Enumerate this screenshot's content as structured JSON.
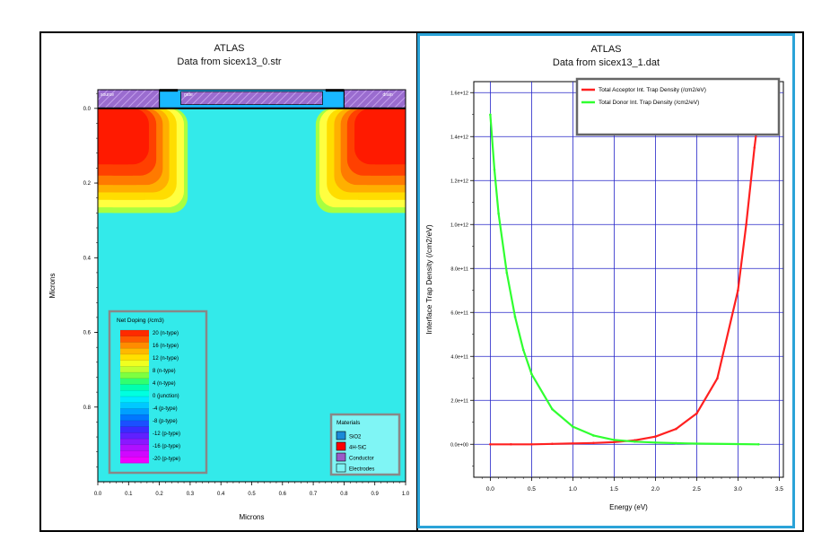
{
  "left": {
    "title": "ATLAS",
    "subtitle": "Data from sicex13_0.str",
    "xlabel": "Microns",
    "ylabel": "Microns",
    "x_ticks": [
      "0.0",
      "0.1",
      "0.2",
      "0.3",
      "0.4",
      "0.5",
      "0.6",
      "0.7",
      "0.8",
      "0.9",
      "1.0"
    ],
    "y_ticks": [
      "0.0",
      "0.2",
      "0.4",
      "0.6",
      "0.8"
    ],
    "xlim": [
      0,
      1.0
    ],
    "ylim": [
      -0.05,
      1.0
    ],
    "electrodes": [
      {
        "label": "source",
        "x0": 0.0,
        "x1": 0.2
      },
      {
        "label": "gate",
        "x0": 0.2,
        "x1": 0.8
      },
      {
        "label": "drain",
        "x0": 0.8,
        "x1": 1.0
      }
    ],
    "doping_legend": {
      "title": "Net Doping (/cm3)",
      "entries": [
        "20 (n-type)",
        "16 (n-type)",
        "12 (n-type)",
        "8 (n-type)",
        "4 (n-type)",
        "0 (junction)",
        "-4 (p-type)",
        "-8 (p-type)",
        "-12 (p-type)",
        "-16 (p-type)",
        "-20 (p-type)"
      ],
      "colors": [
        "#ff2a00",
        "#ff5a00",
        "#ff8c00",
        "#ffb800",
        "#ffe000",
        "#f0ff20",
        "#c0ff30",
        "#7dff40",
        "#30ff70",
        "#00ffb0",
        "#00ffe0",
        "#00eaff",
        "#00c8ff",
        "#00a0ff",
        "#0078ff",
        "#1a50ff",
        "#3a2aff",
        "#6020ff",
        "#8a18ff",
        "#b010ff",
        "#d008ff",
        "#f000ff"
      ]
    },
    "materials_legend": {
      "title": "Materials",
      "entries": [
        {
          "label": "SiO2",
          "color": "#1a8ad8"
        },
        {
          "label": "4H-SiC",
          "color": "#ff0000"
        },
        {
          "label": "Conductor",
          "color": "#9a5bc8"
        },
        {
          "label": "Electrodes",
          "color": "#7ff5f5"
        }
      ]
    },
    "colors": {
      "substrate": "#33eaea",
      "oxide": "#19b8ff",
      "conductor": "#9a6ccf"
    }
  },
  "chart_data": {
    "type": "line",
    "title": "ATLAS",
    "subtitle": "Data from sicex13_1.dat",
    "xlabel": "Energy (eV)",
    "ylabel": "Interface Trap Density (/cm2/eV)",
    "xlim": [
      -0.2,
      3.55
    ],
    "ylim": [
      -150000000000.0,
      1650000000000.0
    ],
    "x_ticks": [
      "0.0",
      "0.5",
      "1.0",
      "1.5",
      "2.0",
      "2.5",
      "3.0",
      "3.5"
    ],
    "y_ticks": [
      "0.0e+00",
      "2.0e+11",
      "4.0e+11",
      "6.0e+11",
      "8.0e+11",
      "1.0e+12",
      "1.2e+12",
      "1.4e+12",
      "1.6e+12"
    ],
    "grid": true,
    "legend_position": "top-right",
    "series": [
      {
        "name": "Total Acceptor Int. Trap Density (/cm2/eV)",
        "color": "#ff2020",
        "x": [
          0.0,
          0.25,
          0.5,
          0.75,
          1.0,
          1.25,
          1.5,
          1.75,
          2.0,
          2.25,
          2.5,
          2.75,
          3.0,
          3.1,
          3.2,
          3.25
        ],
        "y": [
          0.0,
          0.0,
          0.0,
          2000000000.0,
          4000000000.0,
          6000000000.0,
          10000000000.0,
          18000000000.0,
          35000000000.0,
          70000000000.0,
          140000000000.0,
          300000000000.0,
          700000000000.0,
          1000000000000.0,
          1350000000000.0,
          1500000000000.0
        ]
      },
      {
        "name": "Total Donor Int. Trap Density (/cm2/eV)",
        "color": "#30ff30",
        "x": [
          0.0,
          0.05,
          0.1,
          0.2,
          0.3,
          0.4,
          0.5,
          0.75,
          1.0,
          1.25,
          1.5,
          1.75,
          2.0,
          2.25,
          2.5,
          3.0,
          3.25
        ],
        "y": [
          1500000000000.0,
          1250000000000.0,
          1050000000000.0,
          780000000000.0,
          580000000000.0,
          430000000000.0,
          320000000000.0,
          160000000000.0,
          80000000000.0,
          40000000000.0,
          20000000000.0,
          12000000000.0,
          8000000000.0,
          5000000000.0,
          3000000000.0,
          1000000000.0,
          0.0
        ]
      }
    ]
  }
}
